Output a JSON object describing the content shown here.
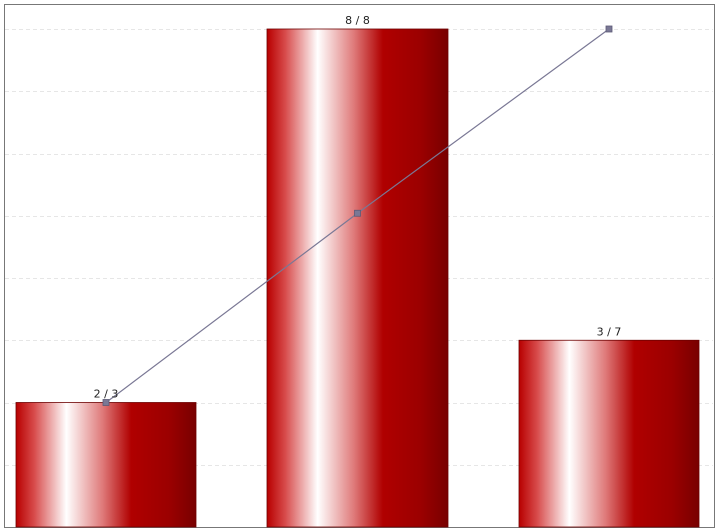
{
  "chart_data": {
    "type": "bar",
    "categories": [
      "",
      "",
      ""
    ],
    "series": [
      {
        "type": "bar",
        "values": [
          2,
          8,
          3
        ],
        "color": "#a80000"
      },
      {
        "type": "line",
        "values": [
          0.25,
          0.63,
          1.0
        ],
        "color": "#7a7895"
      }
    ],
    "data_labels": [
      "2 / 3",
      "8 / 8",
      "3 / 7"
    ],
    "title": "",
    "xlabel": "",
    "ylabel": "",
    "ylim": [
      0,
      8
    ],
    "grid": true,
    "legend": "none"
  }
}
